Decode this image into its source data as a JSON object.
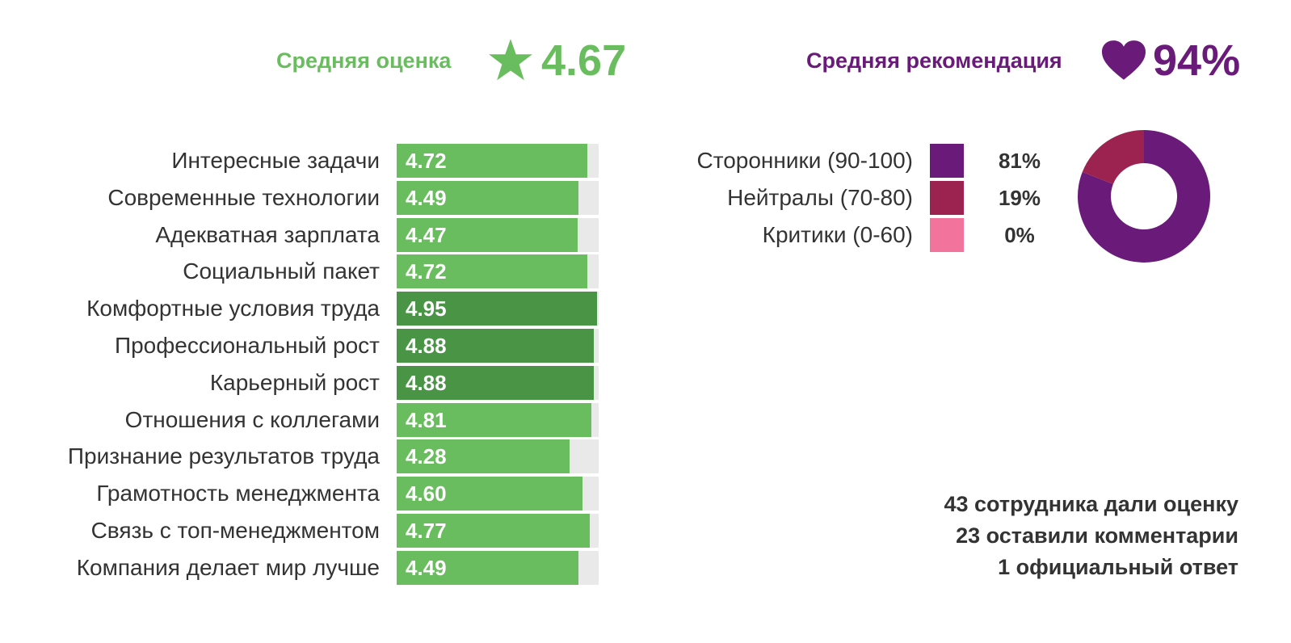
{
  "header": {
    "avg_label": "Средняя оценка",
    "avg_value": "4.67",
    "rec_label": "Средняя рекомендация",
    "rec_value": "94%"
  },
  "colors": {
    "rating_green": "#6abd5e",
    "rating_green_dark": "#4a9446",
    "track_gray": "#e9e9e9",
    "recommend_purple": "#6a1b7a",
    "neutral_crimson": "#9c2350",
    "critic_pink": "#f2739c"
  },
  "icons": {
    "rating": "star-icon",
    "recommendation": "heart-icon"
  },
  "chart_data": [
    {
      "type": "bar",
      "orientation": "horizontal",
      "categories": [
        "Интересные задачи",
        "Современные технологии",
        "Адекватная зарплата",
        "Социальный пакет",
        "Комфортные условия труда",
        "Профессиональный рост",
        "Карьерный рост",
        "Отношения с коллегами",
        "Признание результатов труда",
        "Грамотность менеджмента",
        "Связь с топ-менеджментом",
        "Компания делает мир лучше"
      ],
      "values": [
        4.72,
        4.49,
        4.47,
        4.72,
        4.95,
        4.88,
        4.88,
        4.81,
        4.28,
        4.6,
        4.77,
        4.49
      ],
      "value_labels": [
        "4.72",
        "4.49",
        "4.47",
        "4.72",
        "4.95",
        "4.88",
        "4.88",
        "4.81",
        "4.28",
        "4.60",
        "4.77",
        "4.49"
      ],
      "xlim": [
        0,
        5
      ],
      "highlighted": [
        false,
        false,
        false,
        false,
        true,
        true,
        true,
        false,
        false,
        false,
        false,
        false
      ]
    },
    {
      "type": "pie",
      "donut": true,
      "categories": [
        "Сторонники (90-100)",
        "Нейтралы (70-80)",
        "Критики (0-60)"
      ],
      "values": [
        81,
        19,
        0
      ],
      "value_labels": [
        "81%",
        "19%",
        "0%"
      ],
      "colors": [
        "#6a1b7a",
        "#9c2350",
        "#f2739c"
      ],
      "legend_position": "left"
    }
  ],
  "stats": [
    "43 сотрудника дали оценку",
    "23 оставили комментарии",
    "1 официальный ответ"
  ]
}
